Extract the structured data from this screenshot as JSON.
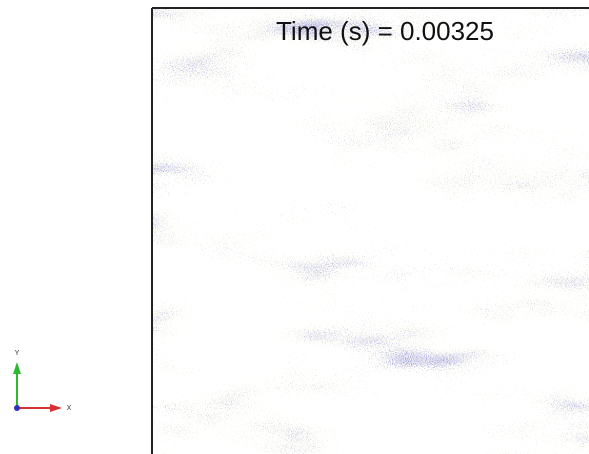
{
  "time_label": "Time (s) = 0.00325",
  "triad": {
    "x": "X",
    "y": "Y"
  }
}
